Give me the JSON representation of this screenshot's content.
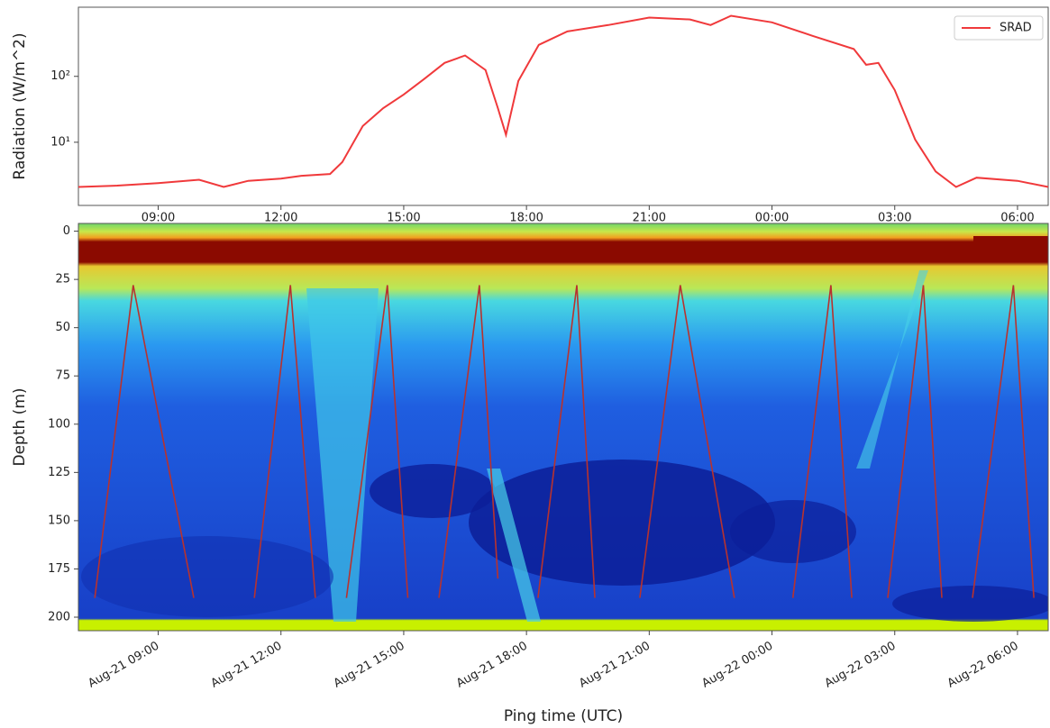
{
  "chart_data": [
    {
      "type": "line",
      "ylabel": "Radiation (W/m^2)",
      "yscale": "log",
      "legend": "upper right",
      "x": [
        7.05,
        8,
        9,
        10,
        10.6,
        11.2,
        12,
        12.5,
        13.2,
        13.5,
        14,
        14.5,
        15,
        15.5,
        16,
        16.5,
        17,
        17.3,
        17.5,
        17.8,
        18.3,
        19,
        20,
        21,
        22,
        22.5,
        23,
        24,
        25,
        26,
        26.3,
        26.6,
        27,
        27.5,
        28,
        28.5,
        29,
        30,
        30.75
      ],
      "series": [
        {
          "name": "SRAD",
          "color": "#f0393b",
          "values": [
            2.1,
            2.2,
            2.4,
            2.7,
            2.1,
            2.6,
            2.8,
            3.1,
            3.3,
            5,
            17.6,
            33,
            53,
            91,
            160,
            207,
            125,
            33,
            13,
            85,
            300,
            480,
            600,
            780,
            730,
            600,
            830,
            660,
            410,
            260,
            150,
            160,
            62,
            11,
            3.6,
            2.1,
            2.9,
            2.6,
            2.1
          ]
        }
      ],
      "xlim": [
        7.05,
        30.75
      ],
      "xticks": [
        {
          "value": 9,
          "label": "09:00"
        },
        {
          "value": 12,
          "label": "12:00"
        },
        {
          "value": 15,
          "label": "15:00"
        },
        {
          "value": 18,
          "label": "18:00"
        },
        {
          "value": 21,
          "label": "21:00"
        },
        {
          "value": 24,
          "label": "00:00"
        },
        {
          "value": 27,
          "label": "03:00"
        },
        {
          "value": 30,
          "label": "06:00"
        }
      ],
      "ylim": [
        1.1,
        1120
      ],
      "yticks": [
        {
          "value": 10,
          "label": "10¹"
        },
        {
          "value": 100,
          "label": "10²"
        }
      ]
    },
    {
      "type": "line",
      "xlabel": "Ping time (UTC)",
      "ylabel": "Depth (m)",
      "x": [
        7.45,
        8.39,
        9.87,
        null,
        11.35,
        12.23,
        12.84,
        null,
        13.6,
        14.6,
        15.1,
        null,
        15.86,
        16.85,
        17.3,
        null,
        18.28,
        19.23,
        19.67,
        null,
        20.77,
        21.76,
        23.08,
        null,
        24.51,
        25.44,
        25.95,
        null,
        26.83,
        27.7,
        28.15,
        null,
        28.9,
        29.9,
        30.4
      ],
      "series": [
        {
          "color": "#b8322e",
          "values": [
            190,
            28,
            190,
            null,
            190,
            28,
            190,
            null,
            190,
            28,
            190,
            null,
            190,
            28,
            180,
            null,
            190,
            28,
            190,
            null,
            190,
            28,
            190,
            null,
            190,
            28,
            190,
            null,
            190,
            28,
            190,
            null,
            190,
            28,
            190
          ]
        }
      ],
      "xlim": [
        7.05,
        30.75
      ],
      "xticks": [
        {
          "value": 9,
          "label": "Aug-21 09:00"
        },
        {
          "value": 12,
          "label": "Aug-21 12:00"
        },
        {
          "value": 15,
          "label": "Aug-21 15:00"
        },
        {
          "value": 18,
          "label": "Aug-21 18:00"
        },
        {
          "value": 21,
          "label": "Aug-21 21:00"
        },
        {
          "value": 24,
          "label": "Aug-22 00:00"
        },
        {
          "value": 27,
          "label": "Aug-22 03:00"
        },
        {
          "value": 30,
          "label": "Aug-22 06:00"
        }
      ],
      "ylim": [
        207,
        -4
      ],
      "yticks": [
        0,
        25,
        50,
        75,
        100,
        125,
        150,
        175,
        200
      ]
    }
  ]
}
